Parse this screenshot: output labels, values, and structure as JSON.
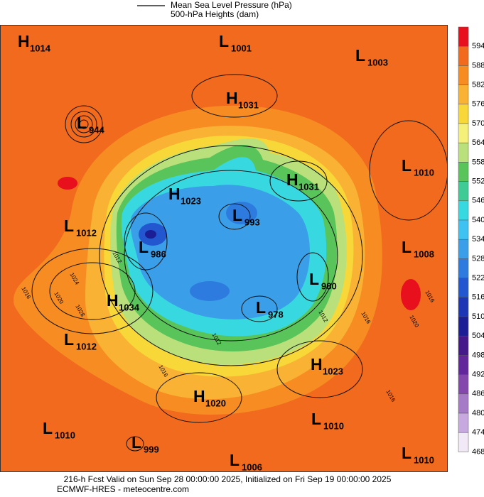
{
  "legend": {
    "lines": [
      "Mean Sea Level Pressure (hPa)",
      "500-hPa Heights (dam)"
    ]
  },
  "colorbar": {
    "ticks": [
      594,
      588,
      582,
      576,
      570,
      564,
      558,
      552,
      546,
      540,
      534,
      528,
      522,
      516,
      510,
      504,
      498,
      492,
      486,
      480,
      474,
      468
    ],
    "colors": [
      "#e8101c",
      "#f26a1e",
      "#f68c22",
      "#f9b233",
      "#f8d838",
      "#f5f07a",
      "#b9e07a",
      "#58c45a",
      "#3ecb96",
      "#38d8e0",
      "#3ec2f2",
      "#3a9ee8",
      "#2d7bde",
      "#2257cf",
      "#1c36b4",
      "#1b1e94",
      "#45198a",
      "#62279a",
      "#8448ad",
      "#a57ac6",
      "#c8a9df",
      "#f1e9f6"
    ]
  },
  "centers": [
    {
      "type": "H",
      "value": "1014"
    },
    {
      "type": "L",
      "value": "1001"
    },
    {
      "type": "L",
      "value": "1003"
    },
    {
      "type": "H",
      "value": "1031"
    },
    {
      "type": "L",
      "value": "944"
    },
    {
      "type": "L",
      "value": "1010"
    },
    {
      "type": "H",
      "value": "1031"
    },
    {
      "type": "H",
      "value": "1023"
    },
    {
      "type": "L",
      "value": "993"
    },
    {
      "type": "L",
      "value": "1012"
    },
    {
      "type": "L",
      "value": "986"
    },
    {
      "type": "L",
      "value": "1008"
    },
    {
      "type": "L",
      "value": "980"
    },
    {
      "type": "H",
      "value": "1034"
    },
    {
      "type": "L",
      "value": "978"
    },
    {
      "type": "L",
      "value": "1012"
    },
    {
      "type": "H",
      "value": "1023"
    },
    {
      "type": "H",
      "value": "1020"
    },
    {
      "type": "L",
      "value": "1010"
    },
    {
      "type": "L",
      "value": "1010"
    },
    {
      "type": "L",
      "value": "999"
    },
    {
      "type": "L",
      "value": "1006"
    },
    {
      "type": "L",
      "value": "1010"
    }
  ],
  "contour_labels": [
    "1024",
    "1020",
    "1028",
    "1016",
    "1012",
    "1016",
    "1012",
    "1020",
    "1016",
    "1012",
    "1016",
    "1016"
  ],
  "footer": {
    "lines": [
      "216-h Fcst Valid on Sun Sep 28 00:00:00 2025, Initialized on Fri Sep 19 00:00:00 2025",
      "ECMWF-HRES - meteocentre.com"
    ]
  }
}
